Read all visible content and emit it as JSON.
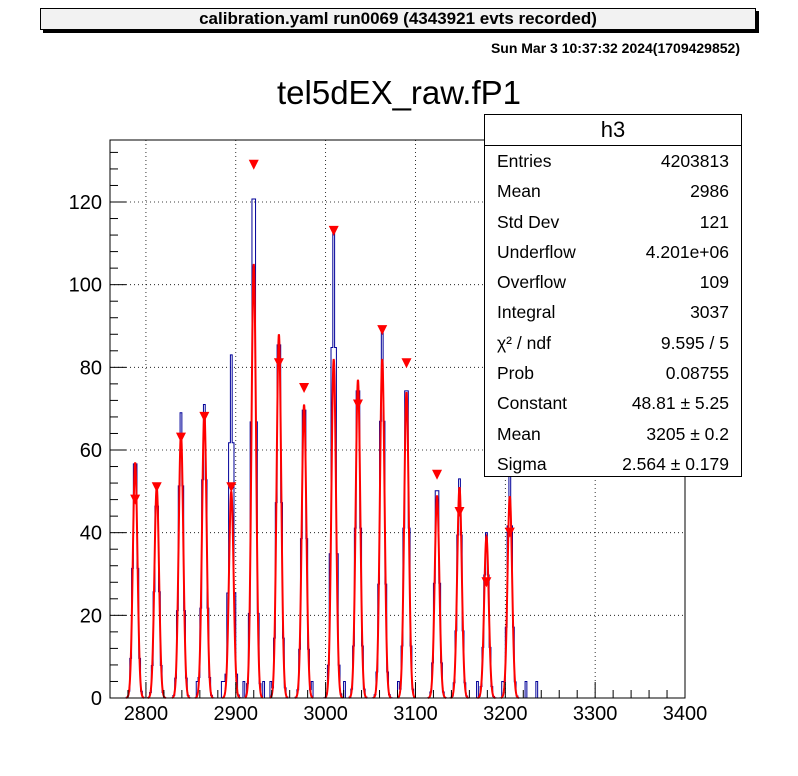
{
  "banner": "calibration.yaml  run0069 (4343921 evts recorded)",
  "datestamp": "Sun Mar  3 10:37:32 2024(1709429852)",
  "stats": {
    "name": "h3",
    "rows": [
      {
        "key": "Entries",
        "value": "4203813"
      },
      {
        "key": "Mean",
        "value": "2986"
      },
      {
        "key": "Std Dev",
        "value": "121"
      },
      {
        "key": "Underflow",
        "value": "4.201e+06"
      },
      {
        "key": "Overflow",
        "value": "109"
      },
      {
        "key": "Integral",
        "value": "3037"
      },
      {
        "key": "χ² / ndf",
        "value": "9.595 / 5"
      },
      {
        "key": "Prob",
        "value": "0.08755"
      },
      {
        "key": "Constant",
        "value": "48.81 ± 5.25"
      },
      {
        "key": "Mean",
        "value": "3205 ± 0.2"
      },
      {
        "key": "Sigma",
        "value": "2.564 ± 0.179"
      }
    ]
  },
  "colors": {
    "histogram": "#000099",
    "fit": "#ff0000",
    "marker": "#ff0000",
    "grid": "#000000"
  },
  "chart_data": {
    "type": "line",
    "title": "tel5dEX_raw.fP1",
    "xlim": [
      2760,
      3400
    ],
    "ylim": [
      0,
      135
    ],
    "xticks": [
      2800,
      2900,
      3000,
      3100,
      3200,
      3300,
      3400
    ],
    "yticks": [
      0,
      20,
      40,
      60,
      80,
      100,
      120
    ],
    "grid": true,
    "histogram_peaks": [
      {
        "x": 2788,
        "y": 61
      },
      {
        "x": 2812,
        "y": 50
      },
      {
        "x": 2839,
        "y": 69
      },
      {
        "x": 2865,
        "y": 71
      },
      {
        "x": 2895,
        "y": 83
      },
      {
        "x": 2920,
        "y": 130
      },
      {
        "x": 2948,
        "y": 92
      },
      {
        "x": 2976,
        "y": 75
      },
      {
        "x": 3009,
        "y": 114
      },
      {
        "x": 3036,
        "y": 80
      },
      {
        "x": 3063,
        "y": 90
      },
      {
        "x": 3090,
        "y": 80
      },
      {
        "x": 3124,
        "y": 54
      },
      {
        "x": 3149,
        "y": 53
      },
      {
        "x": 3179,
        "y": 40
      },
      {
        "x": 3205,
        "y": 56
      }
    ],
    "fit_peaks": [
      {
        "x": 2788,
        "y": 57
      },
      {
        "x": 2812,
        "y": 51
      },
      {
        "x": 2839,
        "y": 64
      },
      {
        "x": 2865,
        "y": 69
      },
      {
        "x": 2895,
        "y": 50
      },
      {
        "x": 2920,
        "y": 105
      },
      {
        "x": 2948,
        "y": 88
      },
      {
        "x": 2976,
        "y": 71
      },
      {
        "x": 3009,
        "y": 82
      },
      {
        "x": 3036,
        "y": 77
      },
      {
        "x": 3063,
        "y": 82
      },
      {
        "x": 3090,
        "y": 74
      },
      {
        "x": 3124,
        "y": 49
      },
      {
        "x": 3149,
        "y": 51
      },
      {
        "x": 3179,
        "y": 39
      },
      {
        "x": 3205,
        "y": 48.8
      }
    ],
    "markers": [
      {
        "x": 2788,
        "y": 48
      },
      {
        "x": 2812,
        "y": 51
      },
      {
        "x": 2839,
        "y": 63
      },
      {
        "x": 2865,
        "y": 68
      },
      {
        "x": 2895,
        "y": 51
      },
      {
        "x": 2920,
        "y": 129
      },
      {
        "x": 2948,
        "y": 81
      },
      {
        "x": 2976,
        "y": 75
      },
      {
        "x": 3009,
        "y": 113
      },
      {
        "x": 3036,
        "y": 71
      },
      {
        "x": 3063,
        "y": 89
      },
      {
        "x": 3090,
        "y": 81
      },
      {
        "x": 3124,
        "y": 54
      },
      {
        "x": 3149,
        "y": 45
      },
      {
        "x": 3179,
        "y": 28
      },
      {
        "x": 3205,
        "y": 40
      }
    ]
  }
}
